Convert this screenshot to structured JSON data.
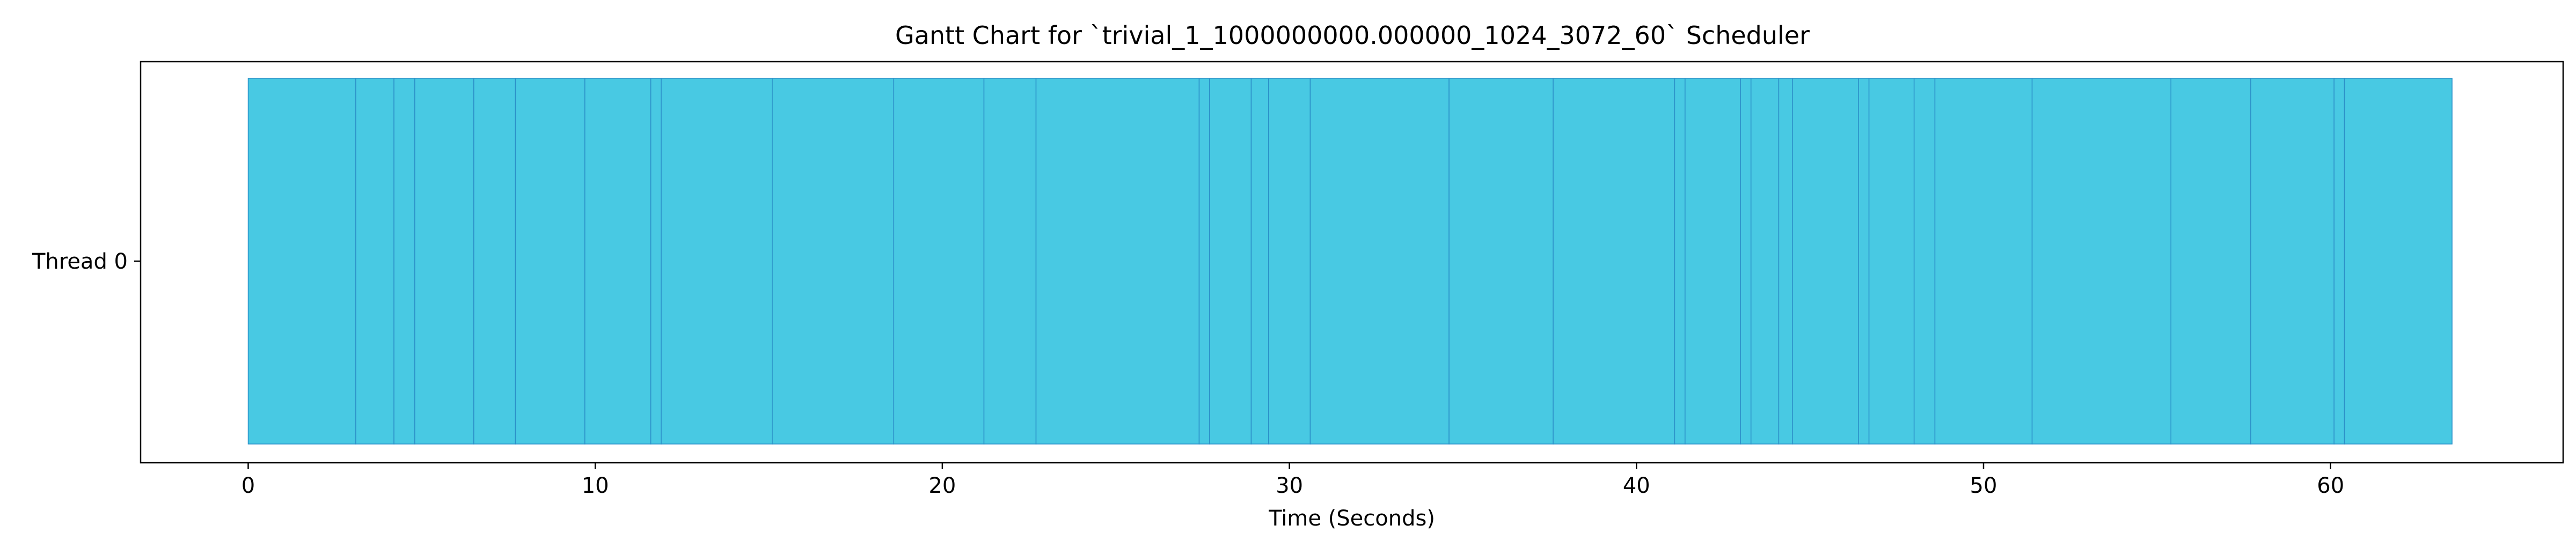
{
  "colors": {
    "bar_fill": "#48c9e3",
    "bar_edge": "#2b8fc8",
    "axis": "#000000",
    "background": "#ffffff"
  },
  "chart_data": {
    "type": "gantt",
    "title": "Gantt Chart for `trivial_1_1000000000.000000_1024_3072_60` Scheduler",
    "xlabel": "Time (Seconds)",
    "ylabel": "",
    "xlim": [
      -3.1,
      66.7
    ],
    "xticks": [
      0,
      10,
      20,
      30,
      40,
      50,
      60
    ],
    "xtick_labels": [
      "0",
      "10",
      "20",
      "30",
      "40",
      "50",
      "60"
    ],
    "yticks": [
      0
    ],
    "ytick_labels": [
      "Thread 0"
    ],
    "grid": false,
    "series": [
      {
        "thread": "Thread 0",
        "start": 0,
        "end": 63.5,
        "boundaries": [
          3.1,
          4.2,
          4.8,
          6.5,
          7.7,
          9.7,
          11.6,
          11.9,
          15.1,
          18.6,
          21.2,
          22.7,
          27.4,
          27.7,
          28.9,
          29.4,
          30.6,
          34.6,
          37.6,
          41.1,
          41.4,
          43.0,
          43.3,
          44.1,
          44.5,
          46.4,
          46.7,
          48.0,
          48.6,
          51.4,
          55.4,
          57.7,
          60.1,
          60.4
        ]
      }
    ]
  }
}
